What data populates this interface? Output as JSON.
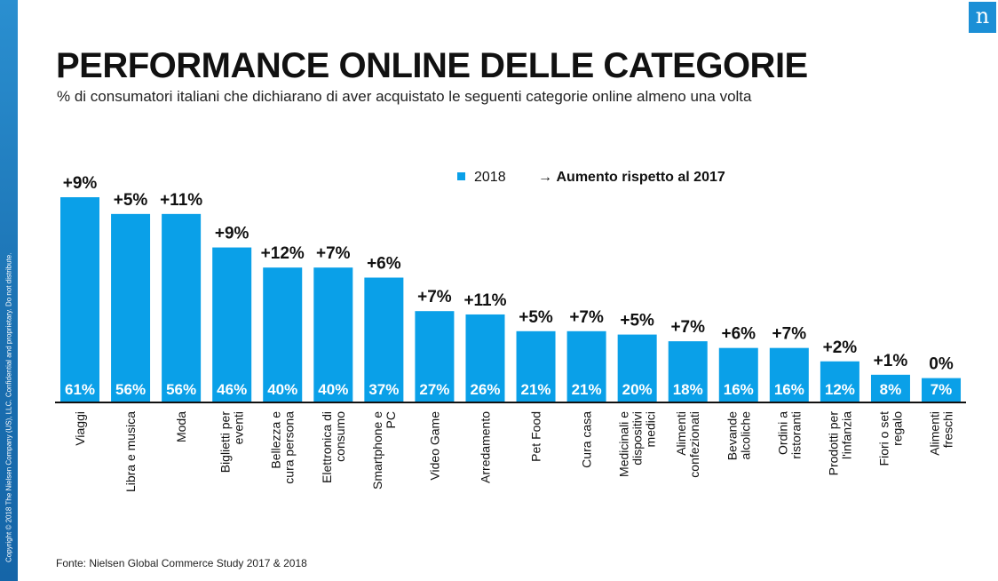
{
  "logo": "n",
  "copyright": "Copyright © 2018 The Nielsen Company (US), LLC. Confidential and proprietary. Do not distribute.",
  "title": "PERFORMANCE ONLINE DELLE CATEGORIE",
  "subtitle": "% di consumatori italiani che dichiarano di aver acquistato le seguenti categorie online almeno una volta",
  "legend": {
    "series_label": "2018",
    "arrow": "→",
    "increase_label": "Aumento rispetto al 2017"
  },
  "source": "Fonte: Nielsen Global Commerce Study 2017 & 2018",
  "colors": {
    "bar": "#0aa0e8",
    "bar_label": "#ffffff",
    "brand": "#1b8fd6"
  },
  "chart_data": {
    "type": "bar",
    "title": "PERFORMANCE ONLINE DELLE CATEGORIE",
    "categories": [
      [
        "Viaggi"
      ],
      [
        "Libra e musica"
      ],
      [
        "Moda"
      ],
      [
        "Biglietti per",
        "eventi"
      ],
      [
        "Bellezza e",
        "cura persona"
      ],
      [
        "Elettronica di",
        "consumo"
      ],
      [
        "Smartphone e",
        "PC"
      ],
      [
        "Video Game"
      ],
      [
        "Arredamento"
      ],
      [
        "Pet Food"
      ],
      [
        "Cura casa"
      ],
      [
        "Medicinali e",
        "dispositivi",
        "medici"
      ],
      [
        "Alimenti",
        "confezionati"
      ],
      [
        "Bevande",
        "alcoliche"
      ],
      [
        "Ordini a",
        "ristoranti"
      ],
      [
        "Prodotti per",
        "l'infanzia"
      ],
      [
        "Fiori o set",
        "regalo"
      ],
      [
        "Alimenti",
        "freschi"
      ]
    ],
    "series": [
      {
        "name": "2018",
        "values": [
          61,
          56,
          56,
          46,
          40,
          40,
          37,
          27,
          26,
          21,
          21,
          20,
          18,
          16,
          16,
          12,
          8,
          7
        ]
      }
    ],
    "value_labels": [
      "61%",
      "56%",
      "56%",
      "46%",
      "40%",
      "40%",
      "37%",
      "27%",
      "26%",
      "21%",
      "21%",
      "20%",
      "18%",
      "16%",
      "16%",
      "12%",
      "8%",
      "7%"
    ],
    "change_labels": [
      "+9%",
      "+5%",
      "+11%",
      "+9%",
      "+12%",
      "+7%",
      "+6%",
      "+7%",
      "+11%",
      "+5%",
      "+7%",
      "+5%",
      "+7%",
      "+6%",
      "+7%",
      "+2%",
      "+1%",
      "0%"
    ],
    "ylim": [
      0,
      61
    ],
    "grid": false,
    "legend_position": "top-right"
  }
}
